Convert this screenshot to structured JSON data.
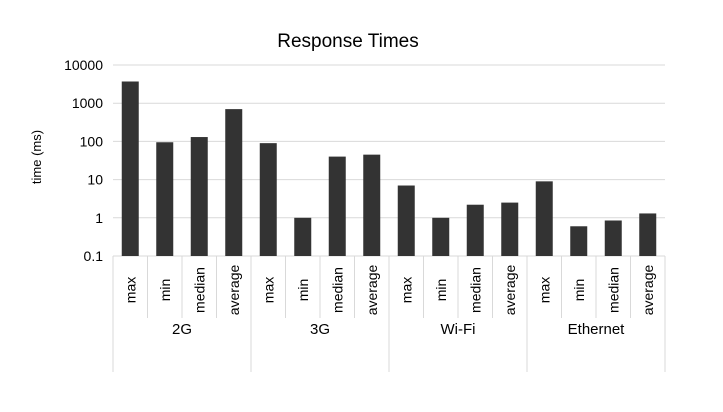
{
  "chart_data": {
    "type": "bar",
    "title": "Response Times",
    "ylabel": "time (ms)",
    "xlabel": "",
    "yscale": "log",
    "ylim": [
      0.1,
      10000
    ],
    "yticks": [
      "0.1",
      "1",
      "10",
      "100",
      "1000",
      "10000"
    ],
    "grid": true,
    "legend": "none",
    "bar_color": "#333333",
    "groups": [
      {
        "name": "2G",
        "categories": [
          "max",
          "min",
          "median",
          "average"
        ],
        "values": [
          3700,
          95,
          130,
          700
        ]
      },
      {
        "name": "3G",
        "categories": [
          "max",
          "min",
          "median",
          "average"
        ],
        "values": [
          90,
          1.0,
          40,
          45
        ]
      },
      {
        "name": "Wi-Fi",
        "categories": [
          "max",
          "min",
          "median",
          "average"
        ],
        "values": [
          7,
          1.0,
          2.2,
          2.5
        ]
      },
      {
        "name": "Ethernet",
        "categories": [
          "max",
          "min",
          "median",
          "average"
        ],
        "values": [
          9,
          0.6,
          0.85,
          1.3
        ]
      }
    ]
  }
}
